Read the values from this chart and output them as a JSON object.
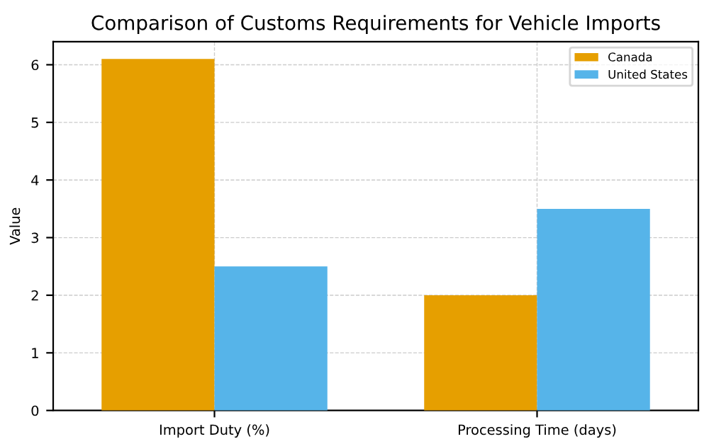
{
  "chart_data": {
    "type": "bar",
    "title": "Comparison of Customs Requirements for Vehicle Imports",
    "ylabel": "Value",
    "categories": [
      "Import Duty (%)",
      "Processing Time (days)"
    ],
    "series": [
      {
        "name": "Canada",
        "color": "#e69f00",
        "values": [
          6.1,
          2.0
        ]
      },
      {
        "name": "United States",
        "color": "#56b4e9",
        "values": [
          2.5,
          3.5
        ]
      }
    ],
    "ylim": [
      0,
      6.4
    ],
    "yticks": [
      0,
      1,
      2,
      3,
      4,
      5,
      6
    ],
    "grid": true,
    "legend": "top right"
  }
}
